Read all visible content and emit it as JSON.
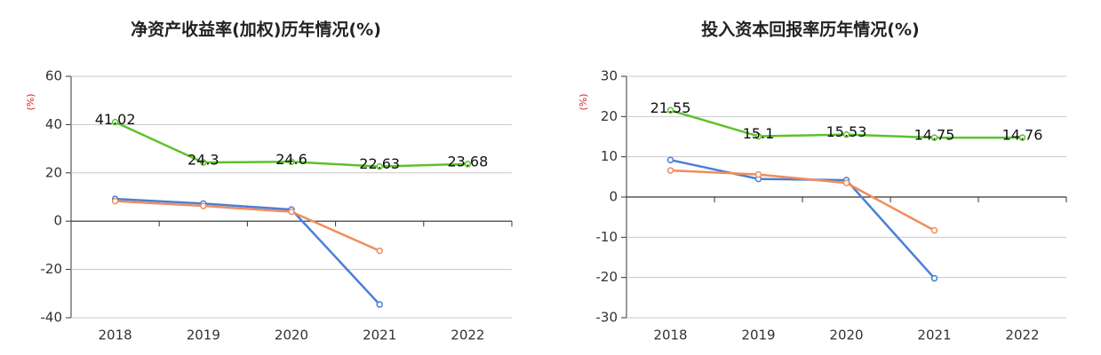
{
  "chart_data": [
    {
      "type": "line",
      "title": "净资产收益率(加权)历年情况(%)",
      "y_label": "(%)",
      "categories": [
        "2018",
        "2019",
        "2020",
        "2021",
        "2022"
      ],
      "ylim": [
        -40,
        60
      ],
      "yticks": [
        -40,
        -20,
        0,
        20,
        40,
        60
      ],
      "grid": true,
      "series": [
        {
          "color": "#5cc22c",
          "values": [
            41.02,
            24.3,
            24.6,
            22.63,
            23.68
          ],
          "labels": true
        },
        {
          "color": "#4a7fd6",
          "values": [
            9.2,
            7.3,
            4.8,
            -34.5,
            null
          ]
        },
        {
          "color": "#f28c5c",
          "values": [
            8.3,
            6.3,
            3.9,
            -12.3,
            null
          ]
        }
      ]
    },
    {
      "type": "line",
      "title": "投入资本回报率历年情况(%)",
      "y_label": "(%)",
      "categories": [
        "2018",
        "2019",
        "2020",
        "2021",
        "2022"
      ],
      "ylim": [
        -30,
        30
      ],
      "yticks": [
        -30,
        -20,
        -10,
        0,
        10,
        20,
        30
      ],
      "grid": true,
      "series": [
        {
          "color": "#5cc22c",
          "values": [
            21.55,
            15.1,
            15.53,
            14.75,
            14.76
          ],
          "labels": true
        },
        {
          "color": "#4a7fd6",
          "values": [
            9.2,
            4.5,
            4.2,
            -20.2,
            null
          ]
        },
        {
          "color": "#f28c5c",
          "values": [
            6.6,
            5.6,
            3.5,
            -8.3,
            null
          ]
        }
      ]
    }
  ]
}
